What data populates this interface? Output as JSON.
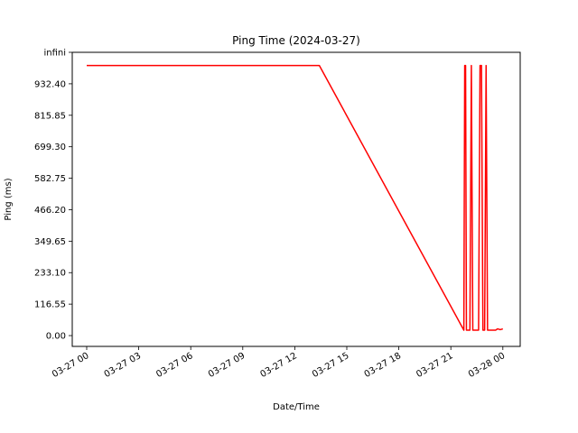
{
  "chart_data": {
    "type": "line",
    "title": "Ping Time (2024-03-27)",
    "xlabel": "Date/Time",
    "ylabel": "Ping (ms)",
    "xlim": [
      "2024-03-26 23:10",
      "2024-03-28 01:00"
    ],
    "ylim": [
      -40,
      1049
    ],
    "x_ticks": [
      {
        "value": "2024-03-27 00:00",
        "label": "03-27 00"
      },
      {
        "value": "2024-03-27 03:00",
        "label": "03-27 03"
      },
      {
        "value": "2024-03-27 06:00",
        "label": "03-27 06"
      },
      {
        "value": "2024-03-27 09:00",
        "label": "03-27 09"
      },
      {
        "value": "2024-03-27 12:00",
        "label": "03-27 12"
      },
      {
        "value": "2024-03-27 15:00",
        "label": "03-27 15"
      },
      {
        "value": "2024-03-27 18:00",
        "label": "03-27 18"
      },
      {
        "value": "2024-03-27 21:00",
        "label": "03-27 21"
      },
      {
        "value": "2024-03-28 00:00",
        "label": "03-28 00"
      }
    ],
    "y_ticks": [
      {
        "value": 0,
        "label": "0.00"
      },
      {
        "value": 116.55,
        "label": "116.55"
      },
      {
        "value": 233.1,
        "label": "233.10"
      },
      {
        "value": 349.65,
        "label": "349.65"
      },
      {
        "value": 466.2,
        "label": "466.20"
      },
      {
        "value": 582.75,
        "label": "582.75"
      },
      {
        "value": 699.3,
        "label": "699.30"
      },
      {
        "value": 815.85,
        "label": "815.85"
      },
      {
        "value": 932.4,
        "label": "932.40"
      },
      {
        "value": 1049,
        "label": "infini"
      }
    ],
    "grid": false,
    "series": [
      {
        "color": "#ff0000",
        "points": [
          {
            "x": "2024-03-27 00:00",
            "y": 1000
          },
          {
            "x": "2024-03-27 13:25",
            "y": 1000
          },
          {
            "x": "2024-03-27 21:45",
            "y": 20
          },
          {
            "x": "2024-03-27 21:48",
            "y": 1000
          },
          {
            "x": "2024-03-27 21:51",
            "y": 1000
          },
          {
            "x": "2024-03-27 21:54",
            "y": 20
          },
          {
            "x": "2024-03-27 22:06",
            "y": 20
          },
          {
            "x": "2024-03-27 22:11",
            "y": 1000
          },
          {
            "x": "2024-03-27 22:16",
            "y": 20
          },
          {
            "x": "2024-03-27 22:36",
            "y": 20
          },
          {
            "x": "2024-03-27 22:41",
            "y": 1000
          },
          {
            "x": "2024-03-27 22:46",
            "y": 1000
          },
          {
            "x": "2024-03-27 22:51",
            "y": 20
          },
          {
            "x": "2024-03-27 22:57",
            "y": 20
          },
          {
            "x": "2024-03-27 23:02",
            "y": 1000
          },
          {
            "x": "2024-03-27 23:07",
            "y": 20
          },
          {
            "x": "2024-03-27 23:35",
            "y": 20
          },
          {
            "x": "2024-03-27 23:42",
            "y": 25
          },
          {
            "x": "2024-03-27 23:51",
            "y": 22
          },
          {
            "x": "2024-03-28 00:00",
            "y": 25
          }
        ]
      }
    ]
  }
}
